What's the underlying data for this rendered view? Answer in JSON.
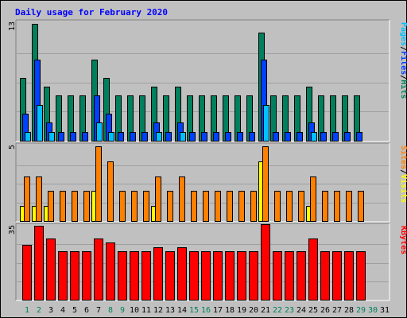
{
  "chart_data": {
    "type": "bar",
    "title": "Daily usage for February 2020",
    "days": [
      "1",
      "2",
      "3",
      "4",
      "5",
      "6",
      "7",
      "8",
      "9",
      "10",
      "11",
      "12",
      "13",
      "14",
      "15",
      "16",
      "17",
      "18",
      "19",
      "20",
      "21",
      "22",
      "23",
      "24",
      "25",
      "26",
      "27",
      "28",
      "29",
      "30",
      "31"
    ],
    "panels": [
      {
        "id": "top",
        "ymax_label": "13",
        "ymax": 13,
        "legend": [
          {
            "text": "Pages",
            "color": "#00c0ff"
          },
          {
            "text": "/",
            "color": "#000000"
          },
          {
            "text": "Files",
            "color": "#0040ff"
          },
          {
            "text": "/",
            "color": "#000000"
          },
          {
            "text": "Hits",
            "color": "#00805c"
          }
        ],
        "series": [
          {
            "name": "Hits",
            "color": "#00805c",
            "values": [
              7,
              13,
              6,
              5,
              5,
              5,
              9,
              7,
              5,
              5,
              5,
              6,
              5,
              6,
              5,
              5,
              5,
              5,
              5,
              5,
              12,
              5,
              5,
              5,
              6,
              5,
              5,
              5,
              5
            ]
          },
          {
            "name": "Files",
            "color": "#0040ff",
            "values": [
              3,
              9,
              2,
              1,
              1,
              1,
              5,
              3,
              1,
              1,
              1,
              2,
              1,
              2,
              1,
              1,
              1,
              1,
              1,
              1,
              9,
              1,
              1,
              1,
              2,
              1,
              1,
              1,
              1
            ]
          },
          {
            "name": "Pages",
            "color": "#00c0ff",
            "values": [
              1,
              4,
              1,
              0,
              0,
              0,
              2,
              1,
              0,
              0,
              0,
              1,
              0,
              1,
              0,
              0,
              0,
              0,
              0,
              0,
              4,
              0,
              0,
              0,
              1,
              0,
              0,
              0,
              0
            ]
          }
        ]
      },
      {
        "id": "middle",
        "ymax_label": "5",
        "ymax": 5,
        "legend": [
          {
            "text": "Sites",
            "color": "#ff8000"
          },
          {
            "text": "/",
            "color": "#000000"
          },
          {
            "text": "Visits",
            "color": "#ffff00"
          }
        ],
        "series": [
          {
            "name": "Visits",
            "color": "#ffff00",
            "values": [
              1,
              1,
              1,
              0,
              0,
              0,
              2,
              0,
              0,
              0,
              0,
              1,
              0,
              0,
              0,
              0,
              0,
              0,
              0,
              0,
              4,
              0,
              0,
              0,
              1,
              0,
              0,
              0,
              0
            ]
          },
          {
            "name": "Sites",
            "color": "#ff8000",
            "values": [
              3,
              3,
              2,
              2,
              2,
              2,
              5,
              4,
              2,
              2,
              2,
              3,
              2,
              3,
              2,
              2,
              2,
              2,
              2,
              2,
              5,
              2,
              2,
              2,
              3,
              2,
              2,
              2,
              2
            ]
          }
        ]
      },
      {
        "id": "bottom",
        "ymax_label": "35",
        "ymax": 35,
        "legend": [
          {
            "text": "KBytes",
            "color": "#ff0000"
          }
        ],
        "series": [
          {
            "name": "KBytes",
            "color": "#ff0000",
            "values": [
              26,
              35,
              29,
              23,
              23,
              23,
              29,
              27,
              23,
              23,
              23,
              25,
              23,
              25,
              23,
              23,
              23,
              23,
              23,
              23,
              38,
              23,
              23,
              23,
              29,
              23,
              23,
              23,
              23
            ]
          }
        ]
      }
    ],
    "weekend_days": [
      1,
      2,
      8,
      9,
      15,
      16,
      22,
      23,
      29,
      30
    ],
    "weekend_color": "#00805c",
    "weekday_color": "#000000"
  }
}
